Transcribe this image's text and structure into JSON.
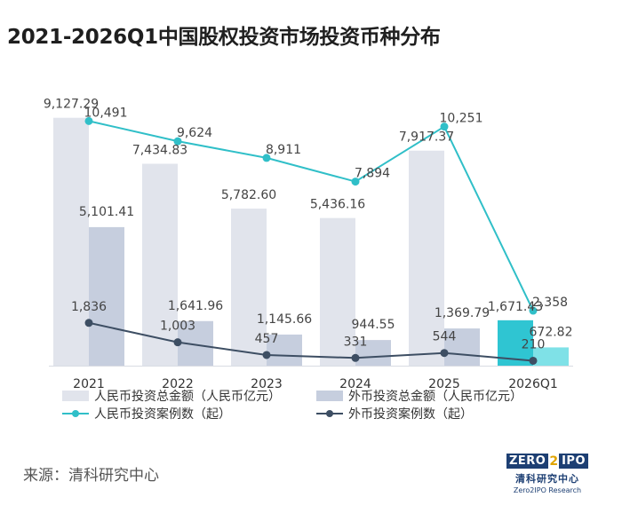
{
  "title": "2021-2026Q1中国股权投资市场投资币种分布",
  "source": "来源：清科研究中心",
  "logo": {
    "word_left": "ZERO",
    "word_mid": "2",
    "word_right": "IPO",
    "cn": "清科研究中心",
    "en": "Zero2IPO Research"
  },
  "colors": {
    "rmb_amount_bar": "#e1e4ec",
    "fx_amount_bar": "#c6cede",
    "rmb_amount_bar_highlight": "#2fc5d2",
    "fx_amount_bar_highlight": "#7fe1e7",
    "rmb_cases_line": "#30bfc8",
    "fx_cases_line": "#3d4e63"
  },
  "chart_data": {
    "type": "bar",
    "categories": [
      "2021",
      "2022",
      "2023",
      "2024",
      "2025",
      "2026Q1"
    ],
    "series": [
      {
        "name": "人民币投资总金额（人民币亿元）",
        "kind": "bar",
        "axis": "left",
        "values": [
          9127.29,
          7434.83,
          5782.6,
          5436.16,
          7917.37,
          1671.43
        ],
        "labels": [
          "9,127.29",
          "7,434.83",
          "5,782.60",
          "5,436.16",
          "7,917.37",
          "1,671.43"
        ]
      },
      {
        "name": "外币投资总金额（人民币亿元）",
        "kind": "bar",
        "axis": "left",
        "values": [
          5101.41,
          1641.96,
          1145.66,
          944.55,
          1369.79,
          672.82
        ],
        "labels": [
          "5,101.41",
          "1,641.96",
          "1,145.66",
          "944.55",
          "1,369.79",
          "672.82"
        ]
      },
      {
        "name": "人民币投资案例数（起）",
        "kind": "line",
        "axis": "right",
        "values": [
          10491,
          9624,
          8911,
          7894,
          10251,
          2358
        ],
        "labels": [
          "10,491",
          "9,624",
          "8,911",
          "7,894",
          "10,251",
          "2,358"
        ]
      },
      {
        "name": "外币投资案例数（起）",
        "kind": "line",
        "axis": "right",
        "values": [
          1836,
          1003,
          457,
          331,
          544,
          210
        ],
        "labels": [
          "1,836",
          "1,003",
          "457",
          "331",
          "544",
          "210"
        ]
      }
    ],
    "ylim_left": [
      0,
      10000
    ],
    "ylim_right": [
      0,
      11000
    ],
    "highlight_category": "2026Q1",
    "legend_position": "bottom",
    "grid": false
  }
}
